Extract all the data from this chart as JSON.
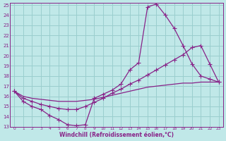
{
  "xlabel": "Windchill (Refroidissement éolien,°C)",
  "xlim": [
    -0.5,
    23.5
  ],
  "ylim": [
    13,
    25.2
  ],
  "xticks": [
    0,
    1,
    2,
    3,
    4,
    5,
    6,
    7,
    8,
    9,
    10,
    11,
    12,
    13,
    14,
    15,
    16,
    17,
    18,
    19,
    20,
    21,
    22,
    23
  ],
  "yticks": [
    13,
    14,
    15,
    16,
    17,
    18,
    19,
    20,
    21,
    22,
    23,
    24,
    25
  ],
  "bg_color": "#c0e8e8",
  "grid_color": "#9acece",
  "line_color": "#882288",
  "line1_x": [
    0,
    1,
    2,
    3,
    4,
    5,
    6,
    7,
    8,
    9,
    10,
    11,
    12,
    13,
    14,
    15,
    16,
    17,
    18,
    19,
    20,
    21,
    22,
    23
  ],
  "line1_y": [
    16.5,
    15.5,
    15.0,
    14.7,
    14.1,
    13.7,
    13.2,
    13.1,
    13.2,
    15.8,
    16.2,
    16.6,
    17.2,
    18.6,
    19.3,
    24.8,
    25.1,
    24.0,
    22.7,
    21.0,
    19.2,
    18.0,
    17.7,
    17.4
  ],
  "line2_x": [
    0,
    1,
    2,
    3,
    4,
    5,
    6,
    7,
    8,
    9,
    10,
    11,
    12,
    13,
    14,
    15,
    16,
    17,
    18,
    19,
    20,
    21,
    22,
    23
  ],
  "line2_y": [
    16.5,
    15.8,
    15.5,
    15.2,
    15.0,
    14.8,
    14.7,
    14.7,
    15.0,
    15.4,
    15.8,
    16.3,
    16.7,
    17.2,
    17.6,
    18.1,
    18.6,
    19.1,
    19.6,
    20.1,
    20.8,
    21.0,
    19.2,
    17.4
  ],
  "line3_x": [
    0,
    1,
    2,
    3,
    4,
    5,
    6,
    7,
    8,
    9,
    10,
    11,
    12,
    13,
    14,
    15,
    16,
    17,
    18,
    19,
    20,
    21,
    22,
    23
  ],
  "line3_y": [
    16.5,
    16.0,
    15.8,
    15.7,
    15.6,
    15.5,
    15.5,
    15.5,
    15.6,
    15.7,
    15.9,
    16.1,
    16.3,
    16.5,
    16.7,
    16.9,
    17.0,
    17.1,
    17.2,
    17.3,
    17.3,
    17.4,
    17.4,
    17.4
  ]
}
